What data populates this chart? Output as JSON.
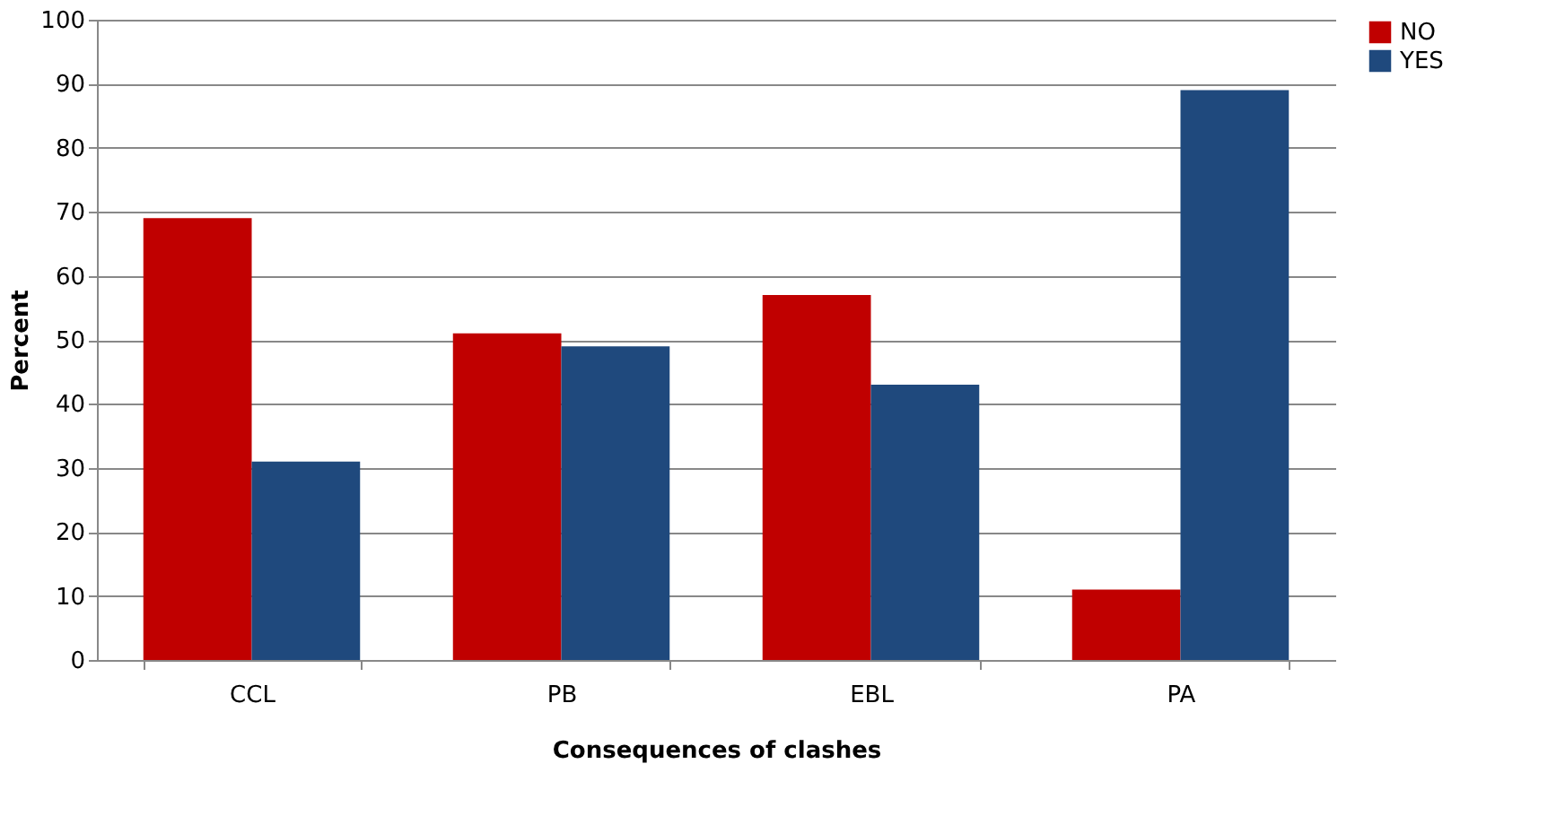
{
  "chart_data": {
    "type": "bar",
    "xlabel": "Consequences of clashes",
    "ylabel": "Percent",
    "categories": [
      "CCL",
      "PB",
      "EBL",
      "PA"
    ],
    "series": [
      {
        "name": "NO",
        "color": "#c00000",
        "values": [
          69,
          51,
          57,
          11
        ]
      },
      {
        "name": "YES",
        "color": "#1f497d",
        "values": [
          31,
          49,
          43,
          89
        ]
      }
    ],
    "ylim": [
      0,
      100
    ],
    "yticks": [
      0,
      10,
      20,
      30,
      40,
      50,
      60,
      70,
      80,
      90,
      100
    ],
    "grid": "y",
    "legend": "right"
  }
}
